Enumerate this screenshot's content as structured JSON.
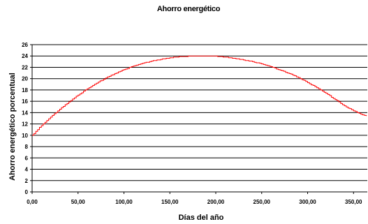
{
  "chart_data": {
    "type": "line",
    "title": "Ahorro energético",
    "xlabel": "Días del año",
    "ylabel": "Ahorro energético porcentual",
    "xlim": [
      0,
      365
    ],
    "ylim": [
      0,
      26
    ],
    "x_ticks": [
      0,
      50,
      100,
      150,
      200,
      250,
      300,
      350
    ],
    "x_tick_labels": [
      "0,00",
      "50,00",
      "100,00",
      "150,00",
      "200,00",
      "250,00",
      "300,00",
      "350,00"
    ],
    "y_ticks": [
      0,
      2,
      4,
      6,
      8,
      10,
      12,
      14,
      16,
      18,
      20,
      22,
      24,
      26
    ],
    "y_tick_labels": [
      "0",
      "2",
      "4",
      "6",
      "8",
      "10",
      "12",
      "14",
      "16",
      "18",
      "20",
      "22",
      "24",
      "26"
    ],
    "grid": true,
    "legend": "none",
    "series": [
      {
        "color": "#ff0000",
        "x": [
          0,
          10,
          20,
          30,
          40,
          50,
          60,
          70,
          80,
          90,
          100,
          110,
          120,
          130,
          140,
          150,
          160,
          170,
          180,
          190,
          200,
          210,
          220,
          230,
          240,
          250,
          260,
          270,
          280,
          290,
          300,
          310,
          320,
          330,
          340,
          350,
          360,
          365
        ],
        "y": [
          10.0,
          11.7,
          13.2,
          14.6,
          15.9,
          17.1,
          18.2,
          19.2,
          20.1,
          20.9,
          21.6,
          22.2,
          22.7,
          23.1,
          23.4,
          23.7,
          23.85,
          23.95,
          24.0,
          24.0,
          23.95,
          23.8,
          23.6,
          23.3,
          23.0,
          22.6,
          22.1,
          21.5,
          20.9,
          20.2,
          19.3,
          18.4,
          17.4,
          16.3,
          15.2,
          14.3,
          13.6,
          13.3
        ]
      }
    ]
  }
}
